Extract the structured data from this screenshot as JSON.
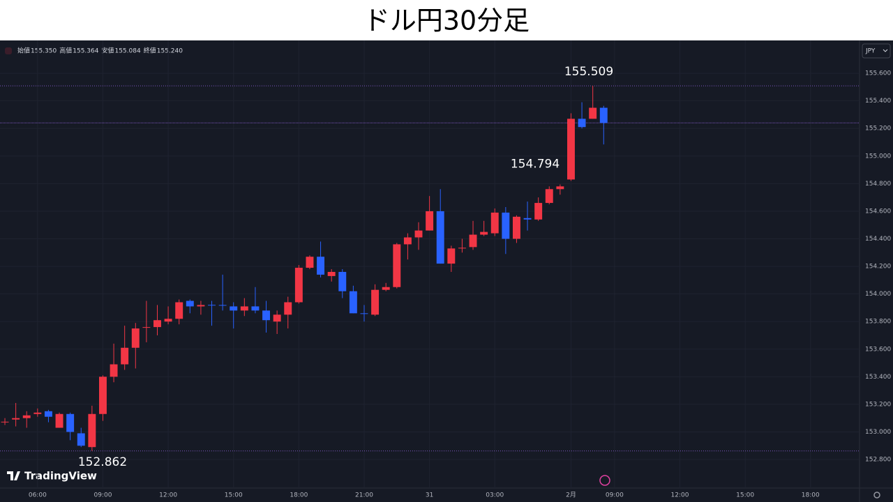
{
  "title": "ドル円30分足",
  "header": {
    "items": [
      {
        "label": "始値",
        "value": "155.350"
      },
      {
        "label": "高値",
        "value": "155.364"
      },
      {
        "label": "安値",
        "value": "155.084"
      },
      {
        "label": "終値",
        "value": "155.240"
      }
    ],
    "currency": "JPY",
    "brand": "TradingView"
  },
  "chart_data": {
    "type": "candlestick",
    "colors": {
      "up": "#f23645",
      "down": "#2962ff"
    },
    "grid": true,
    "open": [
      153.07,
      153.09,
      153.1,
      153.13,
      153.15,
      153.03,
      153.13,
      152.99,
      152.89,
      153.13,
      153.4,
      153.49,
      153.61,
      153.755,
      153.76,
      153.8,
      153.82,
      153.95,
      153.91,
      153.921,
      153.92,
      153.91,
      153.88,
      153.91,
      153.88,
      153.8,
      153.85,
      153.94,
      154.19,
      154.27,
      154.13,
      154.16,
      154.02,
      153.86,
      153.85,
      154.03,
      154.05,
      154.36,
      154.41,
      154.46,
      154.6,
      154.22,
      154.33,
      154.34,
      154.43,
      154.44,
      154.59,
      154.4,
      154.55,
      154.54,
      154.66,
      154.76,
      154.83,
      155.27,
      155.27,
      155.35
    ],
    "high": [
      153.1,
      153.21,
      153.15,
      153.17,
      153.16,
      153.14,
      153.14,
      153.03,
      153.19,
      153.41,
      153.64,
      153.77,
      153.79,
      153.95,
      153.92,
      153.91,
      153.96,
      153.96,
      153.95,
      153.95,
      154.14,
      153.94,
      153.97,
      154.05,
      153.95,
      153.88,
      153.98,
      154.21,
      154.28,
      154.38,
      154.18,
      154.18,
      154.06,
      153.92,
      154.07,
      154.08,
      154.37,
      154.44,
      154.52,
      154.71,
      154.76,
      154.35,
      154.4,
      154.53,
      154.53,
      154.62,
      154.63,
      154.57,
      154.67,
      154.7,
      154.78,
      154.794,
      155.31,
      155.39,
      155.509,
      155.364
    ],
    "low": [
      153.05,
      153.04,
      153.03,
      153.11,
      153.07,
      153.03,
      152.94,
      152.89,
      152.862,
      153.08,
      153.36,
      153.45,
      153.46,
      153.65,
      153.7,
      153.78,
      153.78,
      153.86,
      153.85,
      153.77,
      153.88,
      153.75,
      153.84,
      153.86,
      153.72,
      153.71,
      153.75,
      153.93,
      154.18,
      154.12,
      154.09,
      153.97,
      153.86,
      153.8,
      153.84,
      154.02,
      154.04,
      154.25,
      154.32,
      154.46,
      154.22,
      154.16,
      154.3,
      154.32,
      154.42,
      154.42,
      154.29,
      154.37,
      154.46,
      154.53,
      154.65,
      154.72,
      154.82,
      155.2,
      155.27,
      155.084
    ],
    "close": [
      153.074,
      153.1,
      153.12,
      153.14,
      153.11,
      153.13,
      153.0,
      152.9,
      153.13,
      153.4,
      153.49,
      153.61,
      153.75,
      153.76,
      153.81,
      153.82,
      153.94,
      153.91,
      153.92,
      153.918,
      153.915,
      153.88,
      153.91,
      153.88,
      153.81,
      153.85,
      153.94,
      154.19,
      154.27,
      154.14,
      154.16,
      154.02,
      153.86,
      153.855,
      154.03,
      154.05,
      154.36,
      154.41,
      154.46,
      154.6,
      154.22,
      154.33,
      154.335,
      154.43,
      154.45,
      154.59,
      154.4,
      154.56,
      154.54,
      154.66,
      154.76,
      154.78,
      155.27,
      155.21,
      155.35,
      155.24
    ],
    "xlim": [
      -0.45,
      78.5
    ],
    "xticks": [
      {
        "value": 3,
        "label": "06:00"
      },
      {
        "value": 9,
        "label": "09:00"
      },
      {
        "value": 15,
        "label": "12:00"
      },
      {
        "value": 21,
        "label": "15:00"
      },
      {
        "value": 27,
        "label": "18:00"
      },
      {
        "value": 33,
        "label": "21:00"
      },
      {
        "value": 39,
        "label": "31"
      },
      {
        "value": 45,
        "label": "03:00"
      },
      {
        "value": 52,
        "label": "2月"
      },
      {
        "value": 56,
        "label": "09:00"
      },
      {
        "value": 62,
        "label": "12:00"
      },
      {
        "value": 68,
        "label": "15:00"
      },
      {
        "value": 74,
        "label": "18:00"
      }
    ],
    "ylim": [
      152.593,
      155.838
    ],
    "yticks": [
      {
        "value": 152.8,
        "label": "152.800"
      },
      {
        "value": 153.0,
        "label": "153.000"
      },
      {
        "value": 153.2,
        "label": "153.200"
      },
      {
        "value": 153.4,
        "label": "153.400"
      },
      {
        "value": 153.6,
        "label": "153.600"
      },
      {
        "value": 153.8,
        "label": "153.800"
      },
      {
        "value": 154.0,
        "label": "154.000"
      },
      {
        "value": 154.2,
        "label": "154.200"
      },
      {
        "value": 154.4,
        "label": "154.400"
      },
      {
        "value": 154.6,
        "label": "154.600"
      },
      {
        "value": 154.8,
        "label": "154.800"
      },
      {
        "value": 155.0,
        "label": "155.000"
      },
      {
        "value": 155.2,
        "label": "155.200"
      },
      {
        "value": 155.4,
        "label": "155.400"
      },
      {
        "value": 155.6,
        "label": "155.600"
      }
    ],
    "annotations": [
      {
        "label": "155.509",
        "value": 155.509
      },
      {
        "label": "154.794",
        "value": 154.794
      },
      {
        "label": "152.862",
        "value": 152.862
      }
    ]
  }
}
